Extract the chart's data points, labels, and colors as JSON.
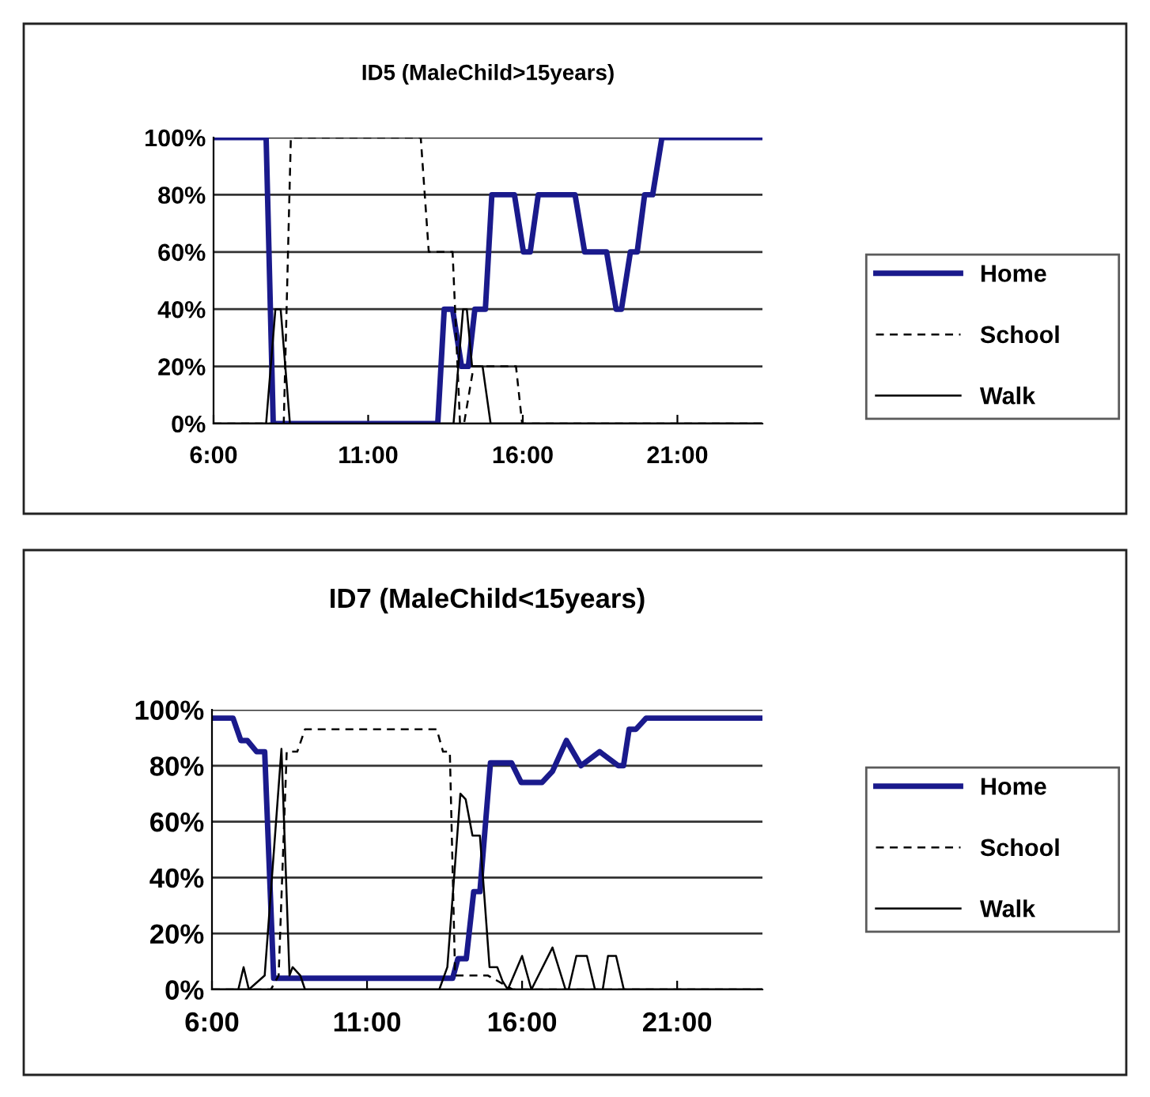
{
  "chart_data": [
    {
      "type": "line",
      "title": "ID5 (MaleChild>15years)",
      "xlim": [
        6,
        23.75
      ],
      "xticks": [
        {
          "value": 6,
          "label": "6:00"
        },
        {
          "value": 11,
          "label": "11:00"
        },
        {
          "value": 16,
          "label": "16:00"
        },
        {
          "value": 21,
          "label": "21:00"
        }
      ],
      "ylim": [
        0,
        100
      ],
      "yticks": [
        {
          "value": 0,
          "label": "0%"
        },
        {
          "value": 20,
          "label": "20%"
        },
        {
          "value": 40,
          "label": "40%"
        },
        {
          "value": 60,
          "label": "60%"
        },
        {
          "value": 80,
          "label": "80%"
        },
        {
          "value": 100,
          "label": "100%"
        }
      ],
      "grid": "y",
      "legend": "right",
      "marker": "none",
      "series": [
        {
          "name": "Home",
          "color": "#1a1a8c",
          "line_style": "solid",
          "x": [
            6,
            7.7,
            7.93,
            13.25,
            13.46,
            13.73,
            14.02,
            14.24,
            14.45,
            14.79,
            15.0,
            15.73,
            16.02,
            16.24,
            16.5,
            17.69,
            18.0,
            18.71,
            19.02,
            19.19,
            19.48,
            19.7,
            19.94,
            20.2,
            20.5,
            23.75
          ],
          "values": [
            100,
            100,
            0,
            0,
            40,
            40,
            20,
            20,
            40,
            40,
            80,
            80,
            60,
            60,
            80,
            80,
            60,
            60,
            40,
            40,
            60,
            60,
            80,
            80,
            100,
            100
          ]
        },
        {
          "name": "School",
          "color": "#000000",
          "line_style": "dashed",
          "x": [
            6,
            8.27,
            8.5,
            12.7,
            12.96,
            13.73,
            13.97,
            14.1,
            14.41,
            15.78,
            15.98,
            23.75
          ],
          "values": [
            0,
            0,
            100,
            100,
            60,
            60,
            0,
            0,
            20,
            20,
            0,
            0
          ]
        },
        {
          "name": "Walk",
          "color": "#000000",
          "line_style": "solid",
          "x": [
            6,
            7.7,
            8.0,
            8.17,
            8.47,
            13.76,
            14.07,
            14.19,
            14.36,
            14.7,
            14.96,
            23.75
          ],
          "values": [
            0,
            0,
            40,
            40,
            0,
            0,
            40,
            40,
            20,
            20,
            0,
            0
          ]
        }
      ]
    },
    {
      "type": "line",
      "title": "ID7 (MaleChild<15years)",
      "xlim": [
        6,
        23.75
      ],
      "xticks": [
        {
          "value": 6,
          "label": "6:00"
        },
        {
          "value": 11,
          "label": "11:00"
        },
        {
          "value": 16,
          "label": "16:00"
        },
        {
          "value": 21,
          "label": "21:00"
        }
      ],
      "ylim": [
        0,
        100
      ],
      "yticks": [
        {
          "value": 0,
          "label": "0%"
        },
        {
          "value": 20,
          "label": "20%"
        },
        {
          "value": 40,
          "label": "40%"
        },
        {
          "value": 60,
          "label": "60%"
        },
        {
          "value": 80,
          "label": "80%"
        },
        {
          "value": 100,
          "label": "100%"
        }
      ],
      "grid": "y",
      "legend": "right",
      "marker": "none",
      "series": [
        {
          "name": "Home",
          "color": "#1a1a8c",
          "line_style": "solid",
          "x": [
            6,
            6.68,
            6.93,
            7.14,
            7.44,
            7.7,
            7.99,
            13.76,
            13.93,
            14.2,
            14.44,
            14.64,
            14.98,
            15.66,
            15.97,
            16.64,
            16.98,
            17.43,
            17.9,
            18.5,
            19.1,
            19.27,
            19.45,
            19.67,
            20.0,
            23.75
          ],
          "values": [
            97,
            97,
            89,
            89,
            85,
            85,
            4,
            4,
            11,
            11,
            35,
            35,
            81,
            81,
            74,
            74,
            78,
            89,
            80,
            85,
            80,
            80,
            93,
            93,
            97,
            97
          ]
        },
        {
          "name": "School",
          "color": "#000000",
          "line_style": "dashed",
          "x": [
            6,
            7.9,
            8.15,
            8.41,
            8.75,
            9.0,
            13.25,
            13.45,
            13.67,
            13.84,
            14.9,
            15.7,
            23.75
          ],
          "values": [
            0,
            0,
            5,
            85,
            85,
            93,
            93,
            85,
            85,
            5,
            5,
            0,
            0
          ]
        },
        {
          "name": "Walk",
          "color": "#000000",
          "line_style": "solid",
          "x": [
            6,
            6.85,
            7.02,
            7.19,
            7.7,
            8.24,
            8.5,
            8.6,
            8.85,
            9.0,
            13.33,
            13.59,
            14.01,
            14.18,
            14.4,
            14.64,
            14.95,
            15.2,
            15.37,
            15.54,
            16.0,
            16.3,
            16.98,
            17.4,
            17.5,
            17.75,
            18.09,
            18.35,
            18.6,
            18.77,
            19.03,
            19.28,
            23.75
          ],
          "values": [
            0,
            0,
            8,
            0,
            5,
            86,
            5,
            8,
            5,
            0,
            0,
            8,
            70,
            68,
            55,
            55,
            8,
            8,
            3,
            0,
            12,
            0,
            15,
            0,
            0,
            12,
            12,
            0,
            0,
            12,
            12,
            0,
            0
          ]
        }
      ]
    }
  ]
}
